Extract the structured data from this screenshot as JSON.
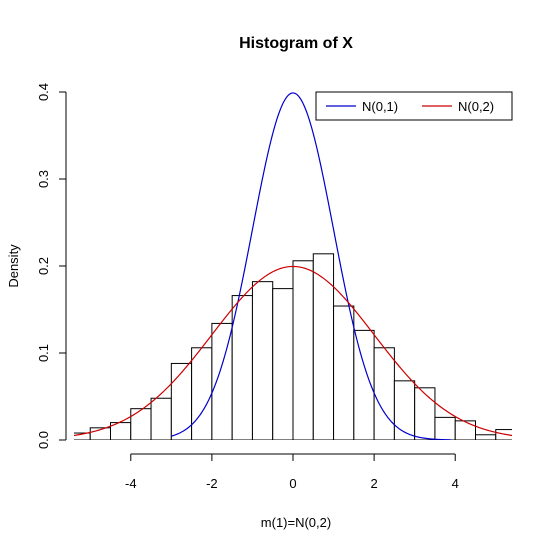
{
  "chart_data": {
    "type": "histogram",
    "title": "Histogram of X",
    "xlabel": "m(1)=N(0,2)",
    "ylabel": "Density",
    "xlim": [
      -5.4,
      5.4
    ],
    "ylim": [
      0,
      0.4
    ],
    "x_ticks": [
      -4,
      -2,
      0,
      2,
      4
    ],
    "y_ticks": [
      0.0,
      0.1,
      0.2,
      0.3,
      0.4
    ],
    "x_tick_labels": [
      "-4",
      "-2",
      "0",
      "2",
      "4"
    ],
    "y_tick_labels": [
      "0.0",
      "0.1",
      "0.2",
      "0.3",
      "0.4"
    ],
    "bin_width": 0.5,
    "bins": [
      {
        "start": -5.5,
        "density": 0.008
      },
      {
        "start": -5.0,
        "density": 0.014
      },
      {
        "start": -4.5,
        "density": 0.02
      },
      {
        "start": -4.0,
        "density": 0.036
      },
      {
        "start": -3.5,
        "density": 0.048
      },
      {
        "start": -3.0,
        "density": 0.088
      },
      {
        "start": -2.5,
        "density": 0.106
      },
      {
        "start": -2.0,
        "density": 0.134
      },
      {
        "start": -1.5,
        "density": 0.166
      },
      {
        "start": -1.0,
        "density": 0.182
      },
      {
        "start": -0.5,
        "density": 0.174
      },
      {
        "start": 0.0,
        "density": 0.206
      },
      {
        "start": 0.5,
        "density": 0.214
      },
      {
        "start": 1.0,
        "density": 0.154
      },
      {
        "start": 1.5,
        "density": 0.126
      },
      {
        "start": 2.0,
        "density": 0.106
      },
      {
        "start": 2.5,
        "density": 0.068
      },
      {
        "start": 3.0,
        "density": 0.06
      },
      {
        "start": 3.5,
        "density": 0.026
      },
      {
        "start": 4.0,
        "density": 0.022
      },
      {
        "start": 4.5,
        "density": 0.006
      },
      {
        "start": 5.0,
        "density": 0.012
      }
    ],
    "curves": [
      {
        "name": "N(0,1)",
        "mean": 0,
        "sd": 1,
        "color": "#0000cc",
        "x_range": [
          -3.0,
          3.9
        ]
      },
      {
        "name": "N(0,2)",
        "mean": 0,
        "sd": 2,
        "color": "#cc0000",
        "x_range": [
          -5.4,
          5.4
        ]
      }
    ],
    "legend": {
      "position": "top-right",
      "entries": [
        "N(0,1)",
        "N(0,2)"
      ]
    }
  }
}
